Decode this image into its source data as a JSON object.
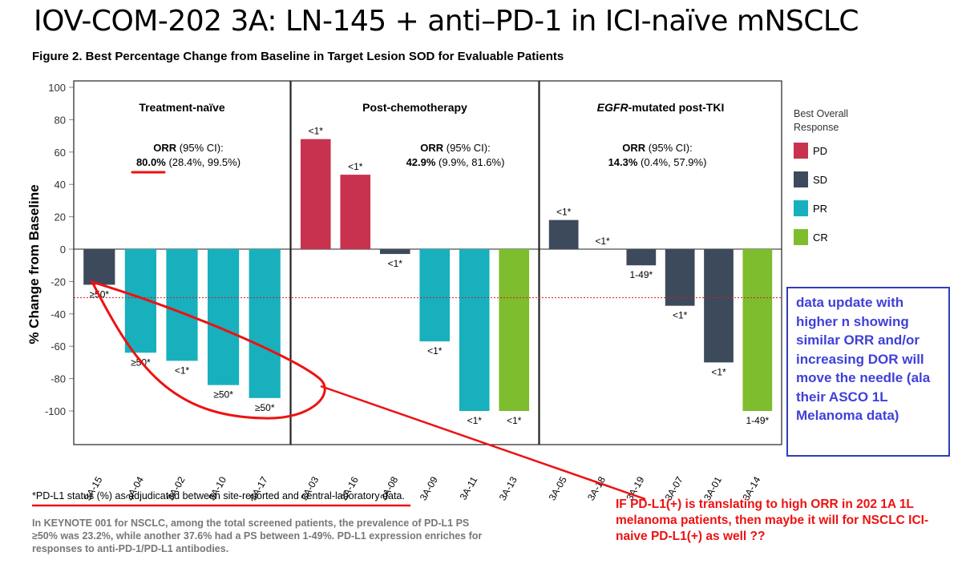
{
  "slide_title": "IOV-COM-202 3A: LN-145 + anti–PD-1 in ICI-naïve mNSCLC",
  "figure_title": "Figure 2. Best Percentage Change from Baseline in Target Lesion SOD for Evaluable Patients",
  "footnote": "*PD-L1 status (%) as adjudicated between site-reported and central-laboratory data.",
  "keynote_text": "In KEYNOTE 001 for NSCLC, among the total screened patients, the prevalence of PD-L1 PS ≥50% was 23.2%, while another 37.6% had a PS between 1-49%. PD-L1 expression enriches for responses to anti-PD-1/PD-L1 antibodies.",
  "callout_box": "data update with higher n showing similar ORR and/or increasing DOR will move the needle (ala their ASCO 1L Melanoma data)",
  "callout_red": "IF PD-L1(+) is translating to high ORR in 202 1A 1L melanoma patients, then maybe it will for NSCLC ICI-naive PD-L1(+) as well ??",
  "colors": {
    "PD": "#c8324e",
    "SD": "#3d4a5c",
    "PR": "#18b0bd",
    "CR": "#7dbd2e",
    "annotation_red": "#ee1111",
    "annotation_blue": "#2c3fb8"
  },
  "chart_data": {
    "type": "bar",
    "ylabel": "% Change from Baseline",
    "ylim": [
      -120,
      105
    ],
    "yticks": [
      100,
      80,
      60,
      40,
      20,
      0,
      -20,
      -40,
      -60,
      -80,
      -100
    ],
    "reference_line": -30,
    "legend": {
      "title": "Best Overall Response",
      "entries": [
        "PD",
        "SD",
        "PR",
        "CR"
      ],
      "placement": "right"
    },
    "panels": [
      {
        "title": "Treatment-naïve",
        "orr_label": "ORR",
        "orr_ci_label": "(95% CI):",
        "orr_value": "80.0%",
        "orr_range": "(28.4%, 99.5%)",
        "patients": [
          {
            "id": "3A-15",
            "value": -22,
            "response": "SD",
            "pdl1": "≥50*"
          },
          {
            "id": "3A-04",
            "value": -64,
            "response": "PR",
            "pdl1": "≥50*"
          },
          {
            "id": "3A-02",
            "value": -69,
            "response": "PR",
            "pdl1": "<1*"
          },
          {
            "id": "3A-10",
            "value": -84,
            "response": "PR",
            "pdl1": "≥50*"
          },
          {
            "id": "3A-17",
            "value": -92,
            "response": "PR",
            "pdl1": "≥50*"
          }
        ]
      },
      {
        "title": "Post-chemotherapy",
        "orr_label": "ORR",
        "orr_ci_label": "(95% CI):",
        "orr_value": "42.9%",
        "orr_range": "(9.9%, 81.6%)",
        "patients": [
          {
            "id": "3A-03",
            "value": 68,
            "response": "PD",
            "pdl1": "<1*"
          },
          {
            "id": "3A-16",
            "value": 46,
            "response": "PD",
            "pdl1": "<1*"
          },
          {
            "id": "3A-08",
            "value": -3,
            "response": "SD",
            "pdl1": "<1*"
          },
          {
            "id": "3A-09",
            "value": -57,
            "response": "PR",
            "pdl1": "<1*"
          },
          {
            "id": "3A-11",
            "value": -100,
            "response": "PR",
            "pdl1": "<1*"
          },
          {
            "id": "3A-13",
            "value": -100,
            "response": "CR",
            "pdl1": "<1*"
          }
        ]
      },
      {
        "title": "EGFR-mutated post-TKI",
        "title_italic_prefix": "EGFR",
        "title_rest": "-mutated post-TKI",
        "orr_label": "ORR",
        "orr_ci_label": "(95% CI):",
        "orr_value": "14.3%",
        "orr_range": "(0.4%, 57.9%)",
        "patients": [
          {
            "id": "3A-05",
            "value": 18,
            "response": "SD",
            "pdl1": "<1*"
          },
          {
            "id": "3A-18",
            "value": 0,
            "response": "SD",
            "pdl1": "<1*"
          },
          {
            "id": "3A-19",
            "value": -10,
            "response": "SD",
            "pdl1": "1-49*"
          },
          {
            "id": "3A-07",
            "value": -35,
            "response": "SD",
            "pdl1": "<1*"
          },
          {
            "id": "3A-01",
            "value": -70,
            "response": "SD",
            "pdl1": "<1*"
          },
          {
            "id": "3A-14",
            "value": -100,
            "response": "CR",
            "pdl1": "1-49*"
          }
        ]
      }
    ]
  }
}
